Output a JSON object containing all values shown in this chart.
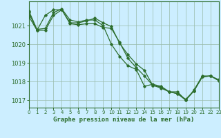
{
  "title": "Graphe pression niveau de la mer (hPa)",
  "line_color": "#2d6e2d",
  "bg_color": "#cceeff",
  "grid_color": "#99bbaa",
  "series": [
    [
      1021.8,
      1020.8,
      1020.85,
      1021.7,
      1021.9,
      1021.3,
      1021.2,
      1021.3,
      1021.3,
      1021.0,
      1020.0,
      1019.35,
      1018.85,
      1018.65,
      1017.75,
      1017.85,
      1017.75,
      1017.45,
      1017.45,
      1017.0,
      1017.55,
      1018.3,
      1018.3,
      1018.1
    ],
    [
      1021.5,
      1020.75,
      1021.55,
      1021.85,
      1021.85,
      1021.15,
      1021.15,
      1021.25,
      1021.4,
      1021.15,
      1020.95,
      1020.05,
      1019.45,
      1018.95,
      1018.6,
      1017.8,
      1017.7,
      1017.45,
      1017.35,
      1017.0,
      1017.5,
      1018.25,
      1018.3,
      1018.05
    ],
    [
      1021.7,
      1020.75,
      1020.75,
      1021.55,
      1021.85,
      1021.1,
      1021.05,
      1021.1,
      1021.1,
      1020.9,
      1020.85,
      1020.1,
      1019.25,
      1018.75,
      1018.3,
      1017.8,
      1017.65,
      1017.45,
      1017.35,
      1017.05,
      1017.5,
      1018.25,
      1018.3,
      1018.05
    ]
  ],
  "xlim": [
    0,
    23
  ],
  "ylim": [
    1016.6,
    1022.3
  ],
  "yticks": [
    1017,
    1018,
    1019,
    1020,
    1021
  ],
  "ytick_labels": [
    "1017",
    "1018",
    "1019",
    "1020",
    "1021"
  ],
  "xticks": [
    0,
    1,
    2,
    3,
    4,
    5,
    6,
    7,
    8,
    9,
    10,
    11,
    12,
    13,
    14,
    15,
    16,
    17,
    18,
    19,
    20,
    21,
    22,
    23
  ],
  "marker": "D",
  "markersize": 1.8,
  "linewidth": 0.9
}
